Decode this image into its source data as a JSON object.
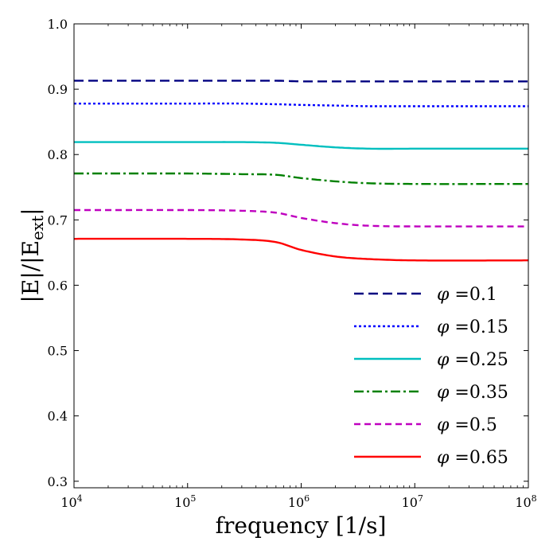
{
  "chart_data": {
    "type": "line",
    "title": "",
    "xlabel": "frequency [1/s]",
    "ylabel": "|E|/|E",
    "ylabel_sub": "ext",
    "ylabel_close": "|",
    "xscale": "log",
    "xlim": [
      10000,
      100000000
    ],
    "ylim": [
      0.29,
      1.0
    ],
    "x_ticks": [
      {
        "base": "10",
        "exp": "4",
        "value": 10000
      },
      {
        "base": "10",
        "exp": "5",
        "value": 100000
      },
      {
        "base": "10",
        "exp": "6",
        "value": 1000000
      },
      {
        "base": "10",
        "exp": "7",
        "value": 10000000
      },
      {
        "base": "10",
        "exp": "8",
        "value": 100000000
      }
    ],
    "y_ticks": [
      {
        "label": "0.3",
        "value": 0.3
      },
      {
        "label": "0.4",
        "value": 0.4
      },
      {
        "label": "0.5",
        "value": 0.5
      },
      {
        "label": "0.6",
        "value": 0.6
      },
      {
        "label": "0.7",
        "value": 0.7
      },
      {
        "label": "0.8",
        "value": 0.8
      },
      {
        "label": "0.9",
        "value": 0.9
      },
      {
        "label": "1.0",
        "value": 1.0
      }
    ],
    "legend_position": "lower-right",
    "legend_symbol": "φ",
    "x": [
      10000,
      100000,
      300000,
      600000,
      1000000,
      2000000,
      4000000,
      10000000,
      100000000
    ],
    "series": [
      {
        "name": "φ =0.1",
        "label": "=0.1",
        "color": "#000080",
        "style": "dashed",
        "values": [
          0.913,
          0.913,
          0.913,
          0.913,
          0.912,
          0.912,
          0.912,
          0.912,
          0.912
        ]
      },
      {
        "name": "φ =0.15",
        "label": "=0.15",
        "color": "#0000ff",
        "style": "dotted",
        "values": [
          0.878,
          0.878,
          0.878,
          0.877,
          0.876,
          0.875,
          0.874,
          0.874,
          0.874
        ]
      },
      {
        "name": "φ =0.25",
        "label": "=0.25",
        "color": "#00bfbf",
        "style": "solid",
        "values": [
          0.819,
          0.819,
          0.819,
          0.818,
          0.815,
          0.811,
          0.809,
          0.809,
          0.809
        ]
      },
      {
        "name": "φ =0.35",
        "label": "=0.35",
        "color": "#008000",
        "style": "dashdot",
        "values": [
          0.771,
          0.771,
          0.77,
          0.769,
          0.764,
          0.759,
          0.756,
          0.755,
          0.755
        ]
      },
      {
        "name": "φ =0.5",
        "label": "=0.5",
        "color": "#bf00bf",
        "style": "dashed-short",
        "values": [
          0.715,
          0.715,
          0.714,
          0.711,
          0.703,
          0.695,
          0.691,
          0.69,
          0.69
        ]
      },
      {
        "name": "φ =0.65",
        "label": "=0.65",
        "color": "#ff0000",
        "style": "solid",
        "values": [
          0.671,
          0.671,
          0.67,
          0.666,
          0.654,
          0.644,
          0.64,
          0.638,
          0.638
        ]
      }
    ]
  }
}
